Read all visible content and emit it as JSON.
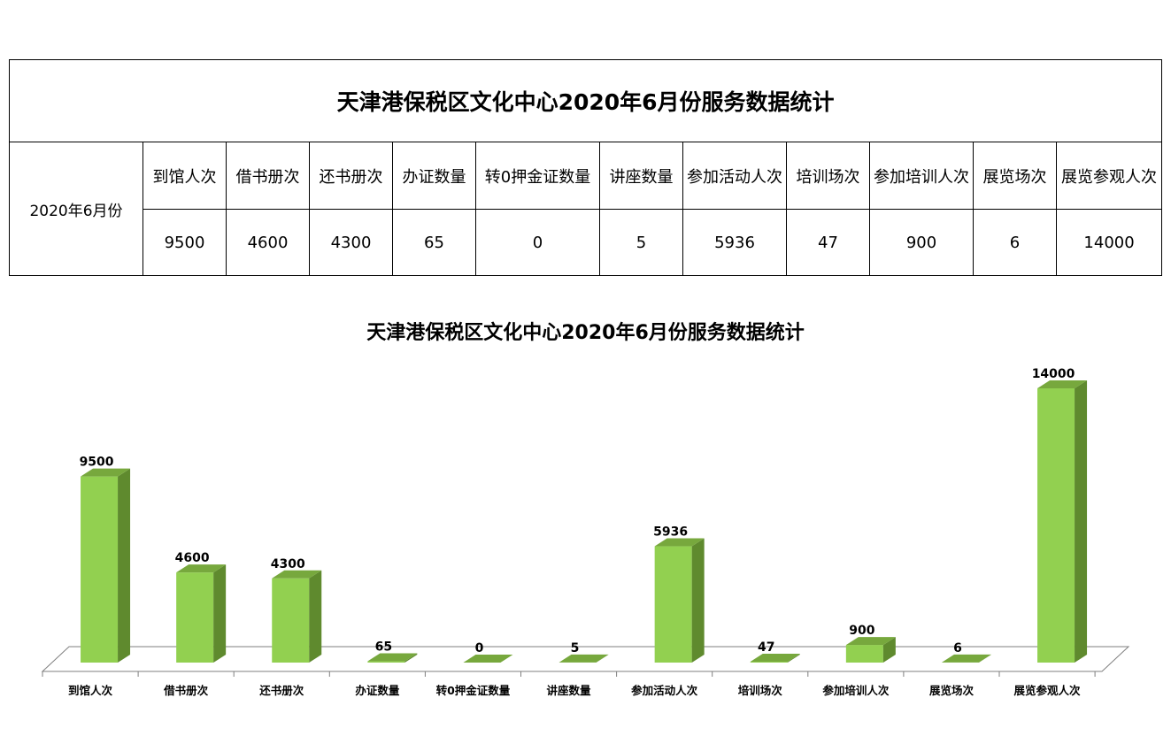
{
  "table": {
    "title": "天津港保税区文化中心2020年6月份服务数据统计",
    "row_label": "2020年6月份",
    "headers": [
      "到馆人次",
      "借书册次",
      "还书册次",
      "办证数量",
      "转0押金证数量",
      "讲座数量",
      "参加活动人次",
      "培训场次",
      "参加培训人次",
      "展览场次",
      "展览参观人次"
    ],
    "values": [
      "9500",
      "4600",
      "4300",
      "65",
      "0",
      "5",
      "5936",
      "47",
      "900",
      "6",
      "14000"
    ]
  },
  "chart_data": {
    "type": "bar",
    "title": "天津港保税区文化中心2020年6月份服务数据统计",
    "categories": [
      "到馆人次",
      "借书册次",
      "还书册次",
      "办证数量",
      "转0押金证数量",
      "讲座数量",
      "参加活动人次",
      "培训场次",
      "参加培训人次",
      "展览场次",
      "展览参观人次"
    ],
    "values": [
      9500,
      4600,
      4300,
      65,
      0,
      5,
      5936,
      47,
      900,
      6,
      14000
    ],
    "ylim": [
      0,
      14000
    ],
    "grid": false,
    "legend": "none",
    "bar_front_color": "#92D050",
    "bar_side_color": "#5F8A2E",
    "bar_top_color": "#77A83D",
    "floor_color": "#7F7F7F"
  }
}
